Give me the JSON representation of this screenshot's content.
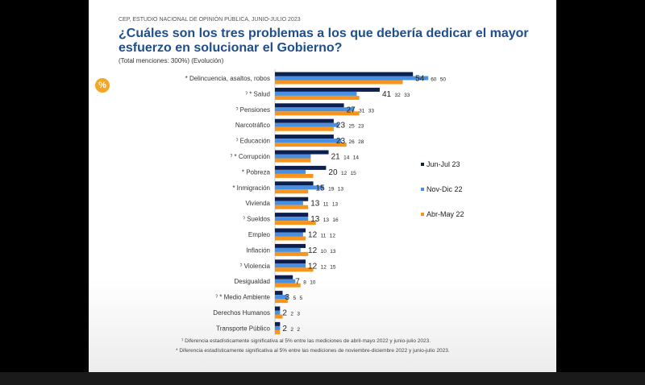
{
  "header": "CEP, ESTUDIO NACIONAL DE OPINIÓN PÚBLICA, JUNIO-JULIO 2023",
  "title": "¿Cuáles son los tres problemas a los que debería dedicar el mayor esfuerzo en solucionar el Gobierno?",
  "subtitle": "(Total menciones: 300%) (Evolución)",
  "badge": "%",
  "notes": [
    "ˀ Diferencia estadísticamente significativa al 5% entre las mediciones de abril-mayo 2022 y junio-julio 2023.",
    "* Diferencia estadísticamente significativa al 5% entre las mediciones de noviembre-diciembre 2022 y junio-julio 2023."
  ],
  "chart_data": {
    "type": "bar",
    "orientation": "horizontal",
    "categories": [
      "* Delincuencia, asaltos, robos",
      "ˀ * Salud",
      "ˀ Pensiones",
      "Narcotráfico",
      "ˀ Educación",
      "ˀ * Corrupción",
      "* Pobreza",
      "* Inmigración",
      "Vivienda",
      "ˀ Sueldos",
      "Empleo",
      "Inflación",
      "ˀ Violencia",
      "Desigualdad",
      "ˀ * Medio Ambiente",
      "Derechos Humanos",
      "Transporte Público"
    ],
    "series": [
      {
        "name": "Jun-Jul 23",
        "color": "#0d1f4f",
        "values": [
          54,
          41,
          27,
          23,
          23,
          21,
          20,
          15,
          13,
          13,
          12,
          12,
          12,
          7,
          3,
          2,
          2
        ]
      },
      {
        "name": "Nov-Dic 22",
        "color": "#4a90e2",
        "values": [
          60,
          32,
          31,
          25,
          26,
          14,
          12,
          19,
          11,
          13,
          11,
          10,
          12,
          8,
          5,
          2,
          2
        ]
      },
      {
        "name": "Abr-May 22",
        "color": "#f7941d",
        "values": [
          50,
          33,
          33,
          23,
          28,
          14,
          15,
          13,
          13,
          16,
          12,
          13,
          15,
          10,
          5,
          3,
          2
        ]
      }
    ],
    "legend": "right",
    "grid": false
  }
}
